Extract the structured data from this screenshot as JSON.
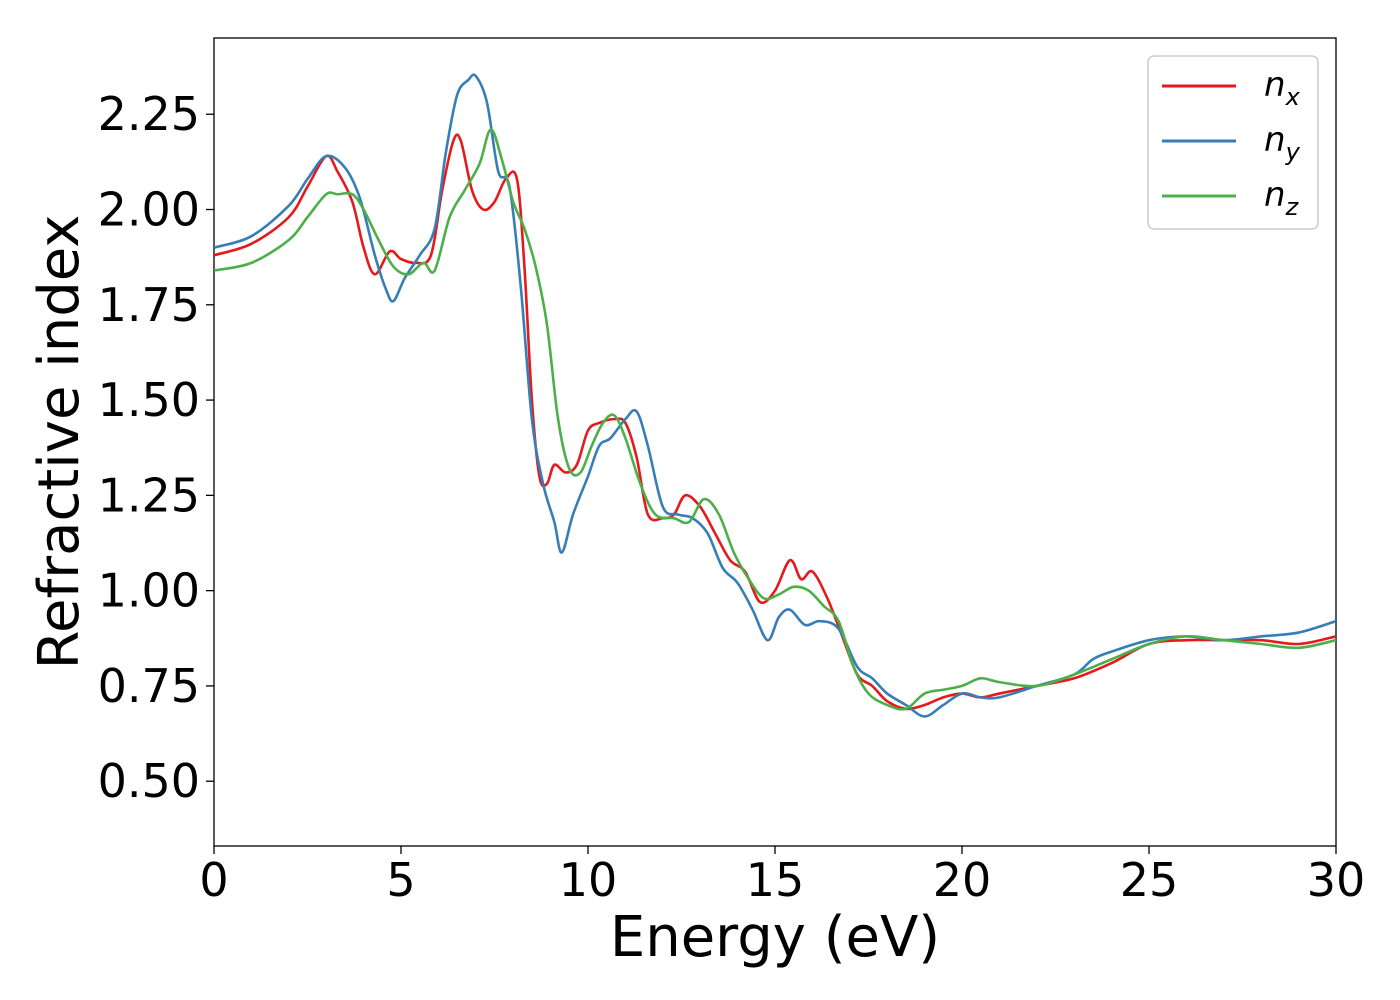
{
  "chart_data": {
    "type": "line",
    "xlabel": "Energy (eV)",
    "ylabel": "Refractive index",
    "xlim": [
      0,
      30
    ],
    "ylim": [
      0.33,
      2.45
    ],
    "xticks": [
      0,
      5,
      10,
      15,
      20,
      25,
      30
    ],
    "xtick_labels": [
      "0",
      "5",
      "10",
      "15",
      "20",
      "25",
      "30"
    ],
    "yticks": [
      0.5,
      0.75,
      1.0,
      1.25,
      1.5,
      1.75,
      2.0,
      2.25
    ],
    "ytick_labels": [
      "0.50",
      "0.75",
      "1.00",
      "1.25",
      "1.50",
      "1.75",
      "2.00",
      "2.25"
    ],
    "grid": false,
    "legend_position": "top-right",
    "series": [
      {
        "name": "n_x",
        "label_main": "n",
        "label_sub": "x",
        "color": "#e41a1c",
        "points": [
          [
            0,
            1.88
          ],
          [
            1,
            1.91
          ],
          [
            2,
            1.98
          ],
          [
            2.5,
            2.06
          ],
          [
            3,
            2.14
          ],
          [
            3.3,
            2.1
          ],
          [
            3.7,
            2.02
          ],
          [
            4,
            1.9
          ],
          [
            4.3,
            1.83
          ],
          [
            4.7,
            1.89
          ],
          [
            5,
            1.87
          ],
          [
            5.4,
            1.86
          ],
          [
            5.8,
            1.88
          ],
          [
            6.1,
            2.05
          ],
          [
            6.4,
            2.18
          ],
          [
            6.6,
            2.18
          ],
          [
            6.9,
            2.05
          ],
          [
            7.2,
            2.0
          ],
          [
            7.5,
            2.02
          ],
          [
            7.8,
            2.08
          ],
          [
            8.1,
            2.08
          ],
          [
            8.3,
            1.85
          ],
          [
            8.5,
            1.5
          ],
          [
            8.7,
            1.3
          ],
          [
            8.9,
            1.28
          ],
          [
            9.1,
            1.33
          ],
          [
            9.4,
            1.31
          ],
          [
            9.7,
            1.33
          ],
          [
            10,
            1.42
          ],
          [
            10.3,
            1.44
          ],
          [
            10.7,
            1.45
          ],
          [
            11,
            1.44
          ],
          [
            11.3,
            1.35
          ],
          [
            11.6,
            1.2
          ],
          [
            12,
            1.19
          ],
          [
            12.3,
            1.2
          ],
          [
            12.6,
            1.25
          ],
          [
            13,
            1.22
          ],
          [
            13.4,
            1.15
          ],
          [
            13.8,
            1.08
          ],
          [
            14.2,
            1.05
          ],
          [
            14.6,
            0.97
          ],
          [
            15,
            1.0
          ],
          [
            15.4,
            1.08
          ],
          [
            15.7,
            1.03
          ],
          [
            16,
            1.05
          ],
          [
            16.4,
            0.98
          ],
          [
            16.8,
            0.88
          ],
          [
            17.2,
            0.78
          ],
          [
            17.6,
            0.75
          ],
          [
            18,
            0.71
          ],
          [
            18.5,
            0.69
          ],
          [
            19,
            0.7
          ],
          [
            19.5,
            0.72
          ],
          [
            20,
            0.73
          ],
          [
            20.5,
            0.72
          ],
          [
            21,
            0.73
          ],
          [
            22,
            0.75
          ],
          [
            23,
            0.77
          ],
          [
            24,
            0.81
          ],
          [
            25,
            0.86
          ],
          [
            26,
            0.87
          ],
          [
            27,
            0.87
          ],
          [
            28,
            0.87
          ],
          [
            29,
            0.86
          ],
          [
            30,
            0.88
          ]
        ]
      },
      {
        "name": "n_y",
        "label_main": "n",
        "label_sub": "y",
        "color": "#377eb8",
        "points": [
          [
            0,
            1.9
          ],
          [
            1,
            1.93
          ],
          [
            2,
            2.01
          ],
          [
            2.5,
            2.08
          ],
          [
            3,
            2.14
          ],
          [
            3.5,
            2.11
          ],
          [
            3.9,
            2.03
          ],
          [
            4.3,
            1.88
          ],
          [
            4.6,
            1.79
          ],
          [
            4.8,
            1.76
          ],
          [
            5.1,
            1.82
          ],
          [
            5.5,
            1.88
          ],
          [
            5.9,
            1.95
          ],
          [
            6.2,
            2.15
          ],
          [
            6.5,
            2.3
          ],
          [
            6.8,
            2.34
          ],
          [
            7,
            2.35
          ],
          [
            7.3,
            2.28
          ],
          [
            7.6,
            2.1
          ],
          [
            7.9,
            2.06
          ],
          [
            8.2,
            1.8
          ],
          [
            8.5,
            1.45
          ],
          [
            8.8,
            1.28
          ],
          [
            9.1,
            1.18
          ],
          [
            9.3,
            1.1
          ],
          [
            9.6,
            1.2
          ],
          [
            10,
            1.3
          ],
          [
            10.3,
            1.38
          ],
          [
            10.6,
            1.4
          ],
          [
            11,
            1.45
          ],
          [
            11.3,
            1.47
          ],
          [
            11.6,
            1.38
          ],
          [
            12,
            1.22
          ],
          [
            12.4,
            1.2
          ],
          [
            12.8,
            1.19
          ],
          [
            13.2,
            1.15
          ],
          [
            13.6,
            1.06
          ],
          [
            14,
            1.02
          ],
          [
            14.4,
            0.95
          ],
          [
            14.8,
            0.87
          ],
          [
            15.1,
            0.93
          ],
          [
            15.4,
            0.95
          ],
          [
            15.8,
            0.91
          ],
          [
            16.2,
            0.92
          ],
          [
            16.7,
            0.9
          ],
          [
            17.2,
            0.8
          ],
          [
            17.6,
            0.77
          ],
          [
            18,
            0.73
          ],
          [
            18.5,
            0.7
          ],
          [
            19,
            0.67
          ],
          [
            19.5,
            0.7
          ],
          [
            20,
            0.73
          ],
          [
            20.5,
            0.72
          ],
          [
            21,
            0.72
          ],
          [
            22,
            0.75
          ],
          [
            23,
            0.78
          ],
          [
            23.5,
            0.82
          ],
          [
            24,
            0.84
          ],
          [
            25,
            0.87
          ],
          [
            26,
            0.88
          ],
          [
            27,
            0.87
          ],
          [
            28,
            0.88
          ],
          [
            29,
            0.89
          ],
          [
            30,
            0.92
          ]
        ]
      },
      {
        "name": "n_z",
        "label_main": "n",
        "label_sub": "z",
        "color": "#4daf4a",
        "points": [
          [
            0,
            1.84
          ],
          [
            1,
            1.86
          ],
          [
            2,
            1.92
          ],
          [
            2.5,
            1.98
          ],
          [
            3,
            2.04
          ],
          [
            3.3,
            2.04
          ],
          [
            3.7,
            2.04
          ],
          [
            4,
            2.0
          ],
          [
            4.4,
            1.92
          ],
          [
            4.8,
            1.85
          ],
          [
            5.2,
            1.83
          ],
          [
            5.6,
            1.86
          ],
          [
            5.9,
            1.84
          ],
          [
            6.3,
            1.98
          ],
          [
            6.7,
            2.05
          ],
          [
            7.1,
            2.12
          ],
          [
            7.4,
            2.21
          ],
          [
            7.7,
            2.13
          ],
          [
            8,
            2.02
          ],
          [
            8.3,
            1.95
          ],
          [
            8.6,
            1.85
          ],
          [
            8.9,
            1.7
          ],
          [
            9.2,
            1.45
          ],
          [
            9.5,
            1.32
          ],
          [
            9.8,
            1.31
          ],
          [
            10.1,
            1.38
          ],
          [
            10.4,
            1.44
          ],
          [
            10.7,
            1.46
          ],
          [
            11,
            1.4
          ],
          [
            11.4,
            1.28
          ],
          [
            11.8,
            1.2
          ],
          [
            12.3,
            1.19
          ],
          [
            12.7,
            1.18
          ],
          [
            13.1,
            1.24
          ],
          [
            13.5,
            1.2
          ],
          [
            13.9,
            1.1
          ],
          [
            14.3,
            1.03
          ],
          [
            14.7,
            0.98
          ],
          [
            15.1,
            0.99
          ],
          [
            15.5,
            1.01
          ],
          [
            15.9,
            1.0
          ],
          [
            16.3,
            0.96
          ],
          [
            16.7,
            0.92
          ],
          [
            17.1,
            0.8
          ],
          [
            17.5,
            0.73
          ],
          [
            18,
            0.7
          ],
          [
            18.5,
            0.69
          ],
          [
            19,
            0.73
          ],
          [
            19.5,
            0.74
          ],
          [
            20,
            0.75
          ],
          [
            20.5,
            0.77
          ],
          [
            21,
            0.76
          ],
          [
            22,
            0.75
          ],
          [
            23,
            0.78
          ],
          [
            24,
            0.82
          ],
          [
            25,
            0.86
          ],
          [
            26,
            0.88
          ],
          [
            27,
            0.87
          ],
          [
            28,
            0.86
          ],
          [
            29,
            0.85
          ],
          [
            30,
            0.87
          ]
        ]
      }
    ]
  }
}
